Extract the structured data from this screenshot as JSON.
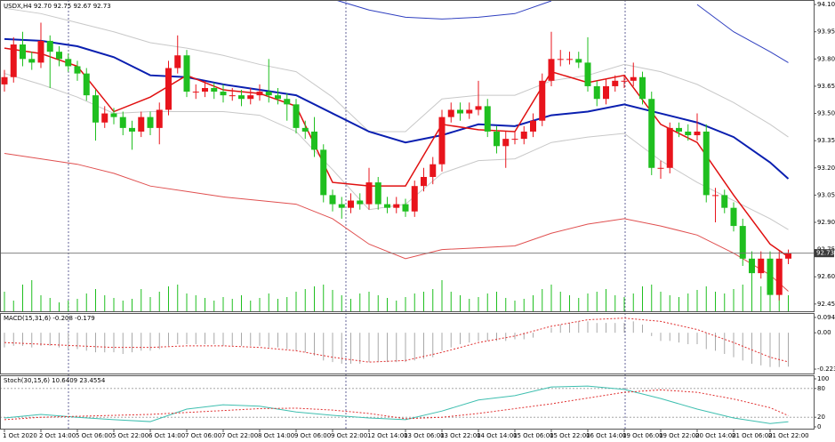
{
  "chart_data": [
    {
      "type": "candlestick",
      "title": "USDX,H4  92.70 92.75 92.67 92.73",
      "categories": [
        "1 Oct 2020",
        null,
        null,
        null,
        "2 Oct 14:00",
        null,
        null,
        null,
        "5 Oct 06:00",
        null,
        null,
        null,
        "5 Oct 22:00",
        null,
        null,
        null,
        "6 Oct 14:00",
        null,
        null,
        null,
        "7 Oct 06:00",
        null,
        null,
        null,
        "7 Oct 22:00",
        null,
        null,
        null,
        "8 Oct 14:00",
        null,
        null,
        null,
        "9 Oct 06:00",
        null,
        null,
        null,
        "9 Oct 22:00",
        null,
        null,
        null,
        "12 Oct 14:00",
        null,
        null,
        null,
        "13 Oct 06:00",
        null,
        null,
        null,
        "13 Oct 22:00",
        null,
        null,
        null,
        "14 Oct 14:00",
        null,
        null,
        null,
        "15 Oct 06:00",
        null,
        null,
        null,
        "15 Oct 22:00",
        null,
        null,
        null,
        "16 Oct 14:00",
        null,
        null,
        null,
        "19 Oct 06:00",
        null,
        null,
        null,
        "19 Oct 22:00",
        null,
        null,
        null,
        "20 Oct 14:00",
        null,
        null,
        null,
        "21 Oct 06:00",
        null,
        null,
        null,
        "21 Oct 22:00",
        null,
        null
      ],
      "open": [
        93.66,
        93.7,
        93.88,
        93.8,
        93.78,
        93.9,
        93.84,
        93.8,
        93.76,
        93.72,
        93.6,
        93.45,
        93.5,
        93.48,
        93.42,
        93.4,
        93.48,
        93.42,
        93.52,
        93.75,
        93.82,
        93.62,
        93.62,
        93.64,
        93.62,
        93.6,
        93.6,
        93.58,
        93.6,
        93.62,
        93.6,
        93.58,
        93.55,
        93.42,
        93.4,
        93.3,
        93.05,
        93.0,
        92.98,
        93.02,
        93.0,
        93.12,
        93.0,
        92.98,
        93.0,
        92.96,
        93.1,
        93.15,
        93.22,
        93.48,
        93.52,
        93.5,
        93.52,
        93.54,
        93.4,
        93.32,
        93.36,
        93.36,
        93.4,
        93.46,
        93.68,
        93.8,
        93.8,
        93.8,
        93.78,
        93.65,
        93.58,
        93.65,
        93.68,
        93.68,
        93.7,
        93.58,
        93.2,
        93.2,
        93.42,
        93.4,
        93.38,
        93.4,
        93.05,
        93.05,
        92.98,
        92.88,
        92.7,
        92.62,
        92.7,
        92.5,
        92.7
      ],
      "high": [
        93.74,
        93.92,
        93.95,
        93.84,
        94.0,
        93.93,
        93.87,
        93.83,
        93.79,
        93.75,
        93.63,
        93.54,
        93.53,
        93.51,
        93.46,
        93.51,
        93.51,
        93.56,
        93.79,
        93.93,
        93.85,
        93.66,
        93.68,
        93.67,
        93.66,
        93.64,
        93.63,
        93.64,
        93.66,
        93.8,
        93.64,
        93.61,
        93.58,
        93.46,
        93.48,
        93.33,
        93.08,
        93.04,
        93.06,
        93.06,
        93.2,
        93.15,
        93.04,
        93.04,
        93.03,
        93.13,
        93.2,
        93.26,
        93.52,
        93.56,
        93.56,
        93.56,
        93.68,
        93.58,
        93.43,
        93.4,
        93.4,
        93.43,
        93.5,
        93.72,
        93.95,
        93.85,
        93.84,
        93.84,
        93.92,
        93.68,
        93.69,
        93.71,
        93.71,
        93.78,
        93.73,
        93.62,
        93.24,
        93.45,
        93.45,
        93.44,
        93.5,
        93.44,
        93.09,
        93.08,
        93.01,
        92.92,
        92.74,
        92.74,
        92.74,
        92.74,
        92.75
      ],
      "low": [
        93.62,
        93.67,
        93.76,
        93.74,
        93.75,
        93.64,
        93.76,
        93.73,
        93.68,
        93.57,
        93.35,
        93.42,
        93.44,
        93.38,
        93.3,
        93.37,
        93.38,
        93.33,
        93.49,
        93.72,
        93.59,
        93.58,
        93.59,
        93.58,
        93.56,
        93.57,
        93.54,
        93.55,
        93.57,
        93.56,
        93.55,
        93.46,
        93.39,
        93.36,
        93.26,
        93.01,
        92.96,
        92.92,
        92.95,
        92.97,
        92.97,
        92.97,
        92.95,
        92.95,
        92.93,
        92.93,
        93.07,
        93.11,
        93.18,
        93.45,
        93.46,
        93.47,
        93.49,
        93.37,
        93.28,
        93.2,
        93.33,
        93.33,
        93.37,
        93.43,
        93.65,
        93.76,
        93.77,
        93.75,
        93.62,
        93.54,
        93.55,
        93.62,
        93.64,
        93.65,
        93.55,
        93.16,
        93.14,
        93.17,
        93.37,
        93.35,
        93.35,
        93.01,
        92.9,
        92.95,
        92.85,
        92.66,
        92.58,
        92.59,
        92.42,
        92.47,
        92.67
      ],
      "close": [
        93.7,
        93.88,
        93.8,
        93.78,
        93.9,
        93.84,
        93.8,
        93.76,
        93.72,
        93.6,
        93.45,
        93.5,
        93.48,
        93.42,
        93.4,
        93.48,
        93.42,
        93.52,
        93.75,
        93.82,
        93.62,
        93.62,
        93.64,
        93.62,
        93.6,
        93.6,
        93.58,
        93.6,
        93.62,
        93.6,
        93.58,
        93.55,
        93.42,
        93.4,
        93.3,
        93.05,
        93.0,
        92.98,
        93.02,
        93.0,
        93.12,
        93.0,
        92.98,
        93.0,
        92.96,
        93.1,
        93.15,
        93.22,
        93.48,
        93.52,
        93.5,
        93.52,
        93.54,
        93.4,
        93.32,
        93.36,
        93.36,
        93.4,
        93.46,
        93.68,
        93.8,
        93.8,
        93.8,
        93.78,
        93.65,
        93.58,
        93.65,
        93.68,
        93.68,
        93.7,
        93.58,
        93.2,
        93.2,
        93.42,
        93.4,
        93.38,
        93.4,
        93.05,
        93.05,
        92.98,
        92.88,
        92.7,
        92.62,
        92.7,
        92.5,
        92.7,
        92.73
      ],
      "volume": [
        22,
        12,
        30,
        35,
        18,
        15,
        10,
        12,
        14,
        20,
        25,
        18,
        15,
        12,
        14,
        25,
        16,
        22,
        28,
        30,
        20,
        18,
        15,
        12,
        16,
        14,
        18,
        12,
        15,
        20,
        14,
        16,
        22,
        25,
        28,
        30,
        24,
        18,
        14,
        20,
        22,
        18,
        15,
        12,
        16,
        20,
        22,
        25,
        35,
        22,
        18,
        14,
        16,
        20,
        22,
        15,
        12,
        14,
        18,
        25,
        30,
        22,
        18,
        15,
        20,
        22,
        25,
        18,
        16,
        20,
        28,
        30,
        22,
        18,
        16,
        20,
        24,
        28,
        22,
        20,
        25,
        30,
        35,
        28,
        40,
        22,
        18
      ],
      "up_color": "#e8141c",
      "down_color": "#1fbf1f",
      "volume_color": "#1fbf1f",
      "series": [
        {
          "color": "#c8c8c8",
          "x": [
            0,
            4,
            8,
            12,
            16,
            20,
            24,
            28,
            32,
            36,
            40,
            44,
            48,
            52,
            56,
            60,
            64,
            68,
            72,
            76,
            80,
            84,
            86
          ],
          "values": [
            94.08,
            94.05,
            94.0,
            93.95,
            93.89,
            93.86,
            93.82,
            93.77,
            93.73,
            93.59,
            93.4,
            93.4,
            93.58,
            93.6,
            93.6,
            93.68,
            93.71,
            93.77,
            93.73,
            93.66,
            93.56,
            93.44,
            93.37
          ]
        },
        {
          "color": "#c8c8c8",
          "x": [
            0,
            4,
            8,
            12,
            16,
            20,
            24,
            28,
            32,
            36,
            40,
            44,
            48,
            52,
            56,
            60,
            64,
            68,
            72,
            76,
            80,
            84,
            86
          ],
          "values": [
            93.72,
            93.66,
            93.59,
            93.5,
            93.51,
            93.51,
            93.51,
            93.49,
            93.4,
            93.19,
            92.97,
            93.0,
            93.17,
            93.24,
            93.25,
            93.34,
            93.37,
            93.39,
            93.24,
            93.12,
            93.02,
            92.92,
            92.86
          ]
        },
        {
          "color": "#e05050",
          "x": [
            0,
            4,
            8,
            12,
            16,
            20,
            24,
            28,
            32,
            36,
            40,
            44,
            48,
            52,
            56,
            60,
            64,
            68,
            72,
            76,
            80,
            84,
            86
          ],
          "values": [
            93.28,
            93.25,
            93.22,
            93.17,
            93.1,
            93.07,
            93.04,
            93.02,
            93.0,
            92.92,
            92.78,
            92.7,
            92.75,
            92.76,
            92.77,
            92.84,
            92.89,
            92.92,
            92.88,
            92.83,
            92.73,
            92.61,
            92.52
          ]
        },
        {
          "color": "#3040c0",
          "x": [
            0,
            4,
            8,
            12,
            16,
            20,
            24,
            28,
            32,
            36,
            40,
            44,
            48,
            52,
            56,
            60,
            64,
            68,
            72,
            76,
            80,
            84,
            86
          ],
          "values": [
            null,
            null,
            null,
            null,
            null,
            null,
            null,
            null,
            null,
            94.13,
            94.07,
            94.03,
            94.02,
            94.03,
            94.05,
            94.12,
            null,
            null,
            null,
            94.1,
            93.95,
            93.84,
            93.78
          ]
        },
        {
          "color": "#0a1fb0",
          "width": 2,
          "x": [
            0,
            4,
            8,
            12,
            16,
            20,
            24,
            28,
            32,
            36,
            40,
            44,
            48,
            52,
            56,
            60,
            64,
            68,
            72,
            76,
            80,
            84,
            86
          ],
          "values": [
            93.91,
            93.9,
            93.87,
            93.81,
            93.71,
            93.7,
            93.66,
            93.63,
            93.6,
            93.5,
            93.4,
            93.34,
            93.38,
            93.44,
            93.43,
            93.49,
            93.51,
            93.55,
            93.5,
            93.45,
            93.37,
            93.23,
            93.14
          ]
        },
        {
          "color": "#e01010",
          "width": 1.5,
          "x": [
            0,
            4,
            8,
            12,
            16,
            20,
            24,
            28,
            32,
            36,
            40,
            44,
            48,
            52,
            56,
            60,
            64,
            68,
            72,
            76,
            80,
            84,
            86
          ],
          "values": [
            93.86,
            93.83,
            93.76,
            93.51,
            93.59,
            93.71,
            93.63,
            93.61,
            93.54,
            93.12,
            93.1,
            93.1,
            93.44,
            93.41,
            93.4,
            93.73,
            93.67,
            93.71,
            93.44,
            93.34,
            93.05,
            92.78,
            92.71
          ]
        }
      ],
      "current_price": 92.73,
      "ylim": [
        92.41,
        94.125
      ],
      "yticks": [
        {
          "value": 94.1,
          "label": "94.10"
        },
        93.95,
        {
          "value": 93.8,
          "label": "93.80"
        },
        93.65,
        {
          "value": 93.5,
          "label": "93.50"
        },
        93.35,
        {
          "value": 93.2,
          "label": "93.20"
        },
        93.05,
        {
          "value": 92.9,
          "label": "92.90"
        },
        92.75,
        {
          "value": 92.6,
          "label": "92.60"
        },
        92.45
      ]
    },
    {
      "type": "macd",
      "title": "MACD(15,31,6) -0.208 -0.179",
      "values": [
        -0.09,
        -0.08,
        -0.08,
        -0.09,
        -0.08,
        -0.08,
        -0.09,
        -0.1,
        -0.1,
        -0.11,
        -0.12,
        -0.12,
        -0.12,
        -0.13,
        -0.12,
        -0.11,
        -0.11,
        -0.1,
        -0.08,
        -0.07,
        -0.07,
        -0.07,
        -0.07,
        -0.07,
        -0.08,
        -0.08,
        -0.08,
        -0.08,
        -0.08,
        -0.09,
        -0.09,
        -0.1,
        -0.11,
        -0.12,
        -0.14,
        -0.17,
        -0.18,
        -0.19,
        -0.19,
        -0.19,
        -0.18,
        -0.18,
        -0.18,
        -0.18,
        -0.18,
        -0.17,
        -0.16,
        -0.15,
        -0.11,
        -0.09,
        -0.07,
        -0.06,
        -0.05,
        -0.05,
        -0.05,
        -0.05,
        -0.04,
        -0.04,
        -0.03,
        0.0,
        0.03,
        0.05,
        0.06,
        0.07,
        0.07,
        0.06,
        0.06,
        0.06,
        0.06,
        0.07,
        0.05,
        -0.02,
        -0.05,
        -0.05,
        -0.06,
        -0.07,
        -0.07,
        -0.1,
        -0.11,
        -0.13,
        -0.15,
        -0.17,
        -0.19,
        -0.2,
        -0.21,
        -0.21,
        -0.208
      ],
      "color": "#a8a8a8",
      "series": [
        {
          "color": "#e03030",
          "dashed": true,
          "x": [
            0,
            4,
            8,
            12,
            16,
            20,
            24,
            28,
            32,
            36,
            40,
            44,
            48,
            52,
            56,
            60,
            64,
            68,
            72,
            76,
            80,
            84,
            86
          ],
          "values": [
            -0.06,
            -0.07,
            -0.08,
            -0.09,
            -0.09,
            -0.08,
            -0.08,
            -0.09,
            -0.11,
            -0.15,
            -0.18,
            -0.17,
            -0.12,
            -0.06,
            -0.02,
            0.04,
            0.08,
            0.09,
            0.07,
            0.02,
            -0.06,
            -0.15,
            -0.179
          ]
        }
      ],
      "ylim": [
        -0.25,
        0.121
      ],
      "yticks": [
        0.094,
        {
          "value": 0,
          "label": "0.00"
        },
        -0.223
      ]
    },
    {
      "type": "stochastic",
      "title": "Stoch(30,15,6) 10.6409 23.4554",
      "series": [
        {
          "color": "#3fbfb0",
          "x": [
            0,
            4,
            8,
            12,
            16,
            20,
            24,
            28,
            32,
            36,
            40,
            44,
            48,
            52,
            56,
            60,
            64,
            68,
            72,
            76,
            80,
            84,
            86
          ],
          "values": [
            18.5,
            26,
            20,
            15,
            11,
            37,
            46,
            43,
            31,
            24,
            18.5,
            15,
            33,
            56,
            65,
            83,
            85,
            78,
            59,
            37,
            18.5,
            7,
            10.6409
          ]
        },
        {
          "color": "#e03030",
          "dashed": true,
          "x": [
            0,
            4,
            8,
            12,
            16,
            20,
            24,
            28,
            32,
            36,
            40,
            44,
            48,
            52,
            56,
            60,
            64,
            68,
            72,
            76,
            80,
            84,
            86
          ],
          "values": [
            15,
            20,
            22,
            24,
            26,
            30,
            34,
            38,
            39,
            35,
            28,
            17,
            20,
            28,
            38,
            48,
            60,
            72,
            77,
            72,
            58,
            40,
            23.4554
          ]
        }
      ],
      "levels": [
        80,
        20
      ],
      "ylim": [
        -3.7,
        107.4
      ],
      "yticks": [
        100,
        80,
        20,
        0
      ]
    }
  ]
}
